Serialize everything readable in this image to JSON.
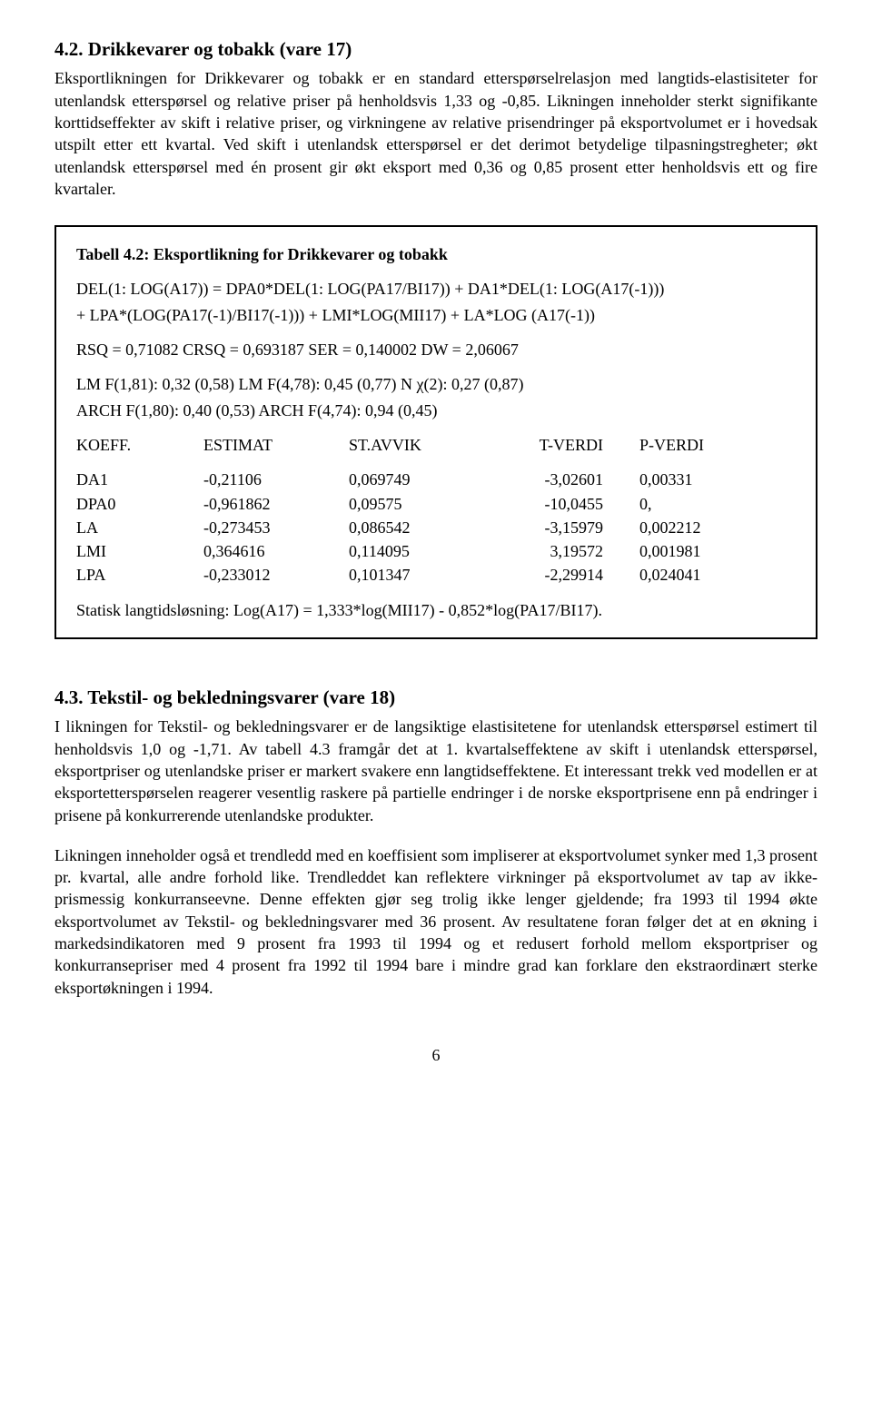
{
  "section42": {
    "heading": "4.2.  Drikkevarer og tobakk (vare 17)",
    "para": "Eksportlikningen for Drikkevarer og tobakk er en standard etterspørselrelasjon med langtids-elastisiteter for utenlandsk etterspørsel og relative priser på henholdsvis 1,33 og -0,85. Likningen inneholder sterkt signifikante korttidseffekter av skift i  relative priser, og virkningene av relative prisendringer på eksportvolumet er i hovedsak utspilt etter ett kvartal. Ved skift i utenlandsk etterspørsel er det derimot betydelige tilpasningstregheter; økt utenlandsk etterspørsel med én prosent gir økt eksport med 0,36 og 0,85 prosent etter henholdsvis ett og fire kvartaler."
  },
  "tablebox": {
    "title": "Tabell 4.2: Eksportlikning for Drikkevarer og tobakk",
    "eq1": "DEL(1: LOG(A17)) = DPA0*DEL(1: LOG(PA17/BI17)) + DA1*DEL(1: LOG(A17(-1)))",
    "eq2": "+ LPA*(LOG(PA17(-1)/BI17(-1))) + LMI*LOG(MII17) + LA*LOG (A17(-1))",
    "rsq": "RSQ = 0,71082    CRSQ = 0,693187    SER = 0,140002    DW = 2,06067",
    "lm1": "LM F(1,81): 0,32 (0,58)    LM F(4,78): 0,45 (0,77)    N χ(2): 0,27 (0,87)",
    "lm2": "ARCH F(1,80): 0,40 (0,53)    ARCH F(4,74): 0,94 (0,45)",
    "headers": {
      "koeff": "KOEFF.",
      "est": "ESTIMAT",
      "stavvik": "ST.AVVIK",
      "tverdi": "T-VERDI",
      "pverdi": "P-VERDI"
    },
    "rows": [
      {
        "koeff": "DA1",
        "est": "-0,21106",
        "stavvik": "0,069749",
        "tverdi": "-3,02601",
        "pverdi": "0,00331"
      },
      {
        "koeff": "DPA0",
        "est": "-0,961862",
        "stavvik": "0,09575",
        "tverdi": "-10,0455",
        "pverdi": "0,"
      },
      {
        "koeff": "LA",
        "est": "-0,273453",
        "stavvik": "0,086542",
        "tverdi": "-3,15979",
        "pverdi": "0,002212"
      },
      {
        "koeff": "LMI",
        "est": " 0,364616",
        "stavvik": "0,114095",
        "tverdi": "3,19572",
        "pverdi": "0,001981"
      },
      {
        "koeff": "LPA",
        "est": "-0,233012",
        "stavvik": "0,101347",
        "tverdi": "-2,29914",
        "pverdi": "0,024041"
      }
    ],
    "statisk": "Statisk langtidsløsning: Log(A17) = 1,333*log(MII17) - 0,852*log(PA17/BI17)."
  },
  "section43": {
    "heading": "4.3.  Tekstil- og bekledningsvarer (vare 18)",
    "para1": "I likningen for Tekstil- og bekledningsvarer er de langsiktige elastisitetene for utenlandsk etterspørsel estimert til henholdsvis 1,0 og -1,71. Av tabell 4.3 framgår det at 1. kvartalseffektene av skift i utenlandsk etterspørsel, eksportpriser og utenlandske priser er markert svakere enn langtidseffektene. Et interessant trekk ved modellen er at eksportetterspørselen reagerer vesentlig raskere på partielle endringer i de norske eksportprisene enn på endringer i prisene på konkurrerende utenlandske produkter.",
    "para2": "Likningen inneholder også et trendledd med en koeffisient som impliserer at eksportvolumet synker med 1,3 prosent pr. kvartal, alle andre forhold like. Trendleddet kan reflektere virkninger på eksportvolumet av tap av ikke-prismessig konkurranseevne. Denne effekten gjør seg trolig ikke lenger gjeldende; fra 1993 til 1994 økte eksportvolumet av Tekstil- og bekledningsvarer med 36 prosent. Av resultatene foran følger det at en økning i markedsindikatoren med 9 prosent fra 1993 til 1994 og et redusert forhold mellom eksportpriser og konkurransepriser med 4 prosent fra 1992 til 1994 bare i mindre grad kan forklare den ekstraordinært sterke eksportøkningen i 1994."
  },
  "pageNumber": "6"
}
